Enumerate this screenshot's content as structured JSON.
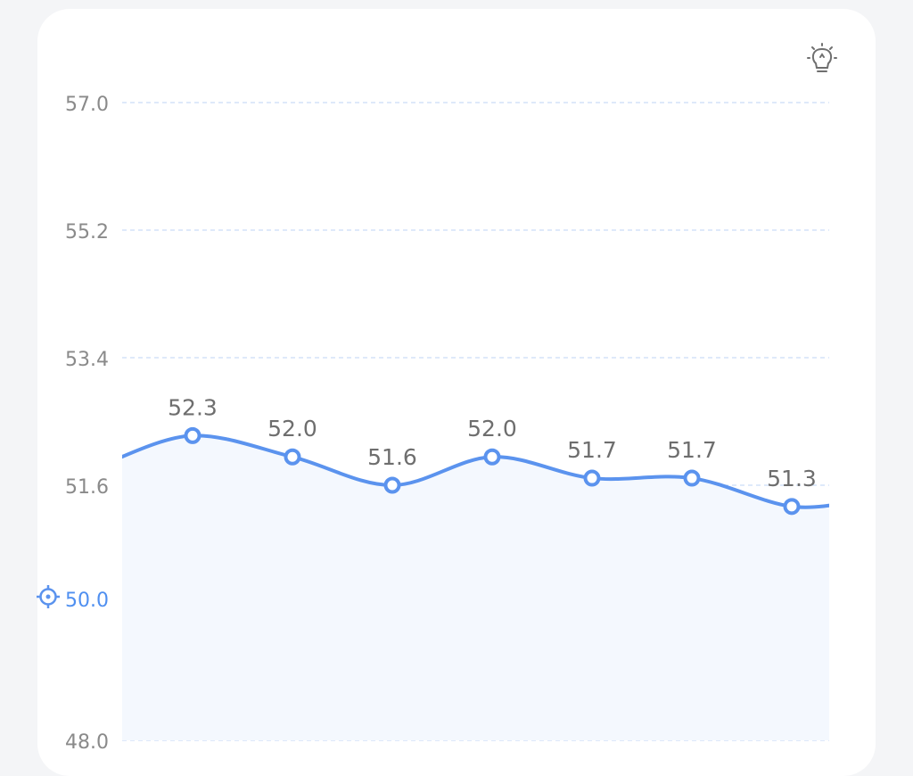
{
  "chart_data": {
    "type": "line",
    "y_ticks": [
      "57.0",
      "55.2",
      "53.4",
      "51.6",
      "48.0"
    ],
    "target": {
      "value": 50.0,
      "label": "50.0"
    },
    "ylim": [
      48.0,
      57.0
    ],
    "points": [
      {
        "value": 52.3,
        "label": "52.3"
      },
      {
        "value": 52.0,
        "label": "52.0"
      },
      {
        "value": 51.6,
        "label": "51.6"
      },
      {
        "value": 52.0,
        "label": "52.0"
      },
      {
        "value": 51.7,
        "label": "51.7"
      },
      {
        "value": 51.7,
        "label": "51.7"
      },
      {
        "value": 51.3,
        "label": "51.3"
      }
    ],
    "line_start_value": 51.9,
    "line_end_value": 51.4,
    "colors": {
      "line": "#5b93ee",
      "fill": "#f4f8fe",
      "grid": "#c9dcf7",
      "target": "#5b93ee"
    },
    "grid": true
  },
  "icons": {
    "tips": "lightbulb-icon",
    "target": "target-icon"
  }
}
